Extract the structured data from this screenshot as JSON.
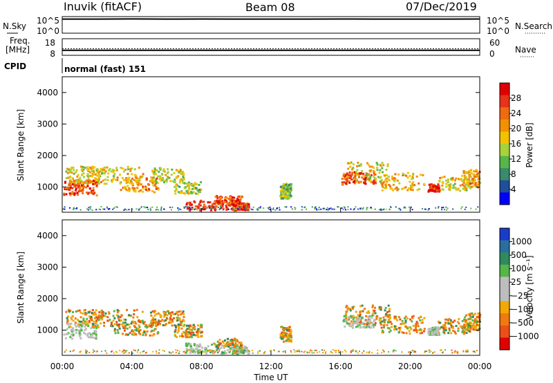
{
  "header": {
    "station": "Inuvik (fitACF)",
    "beam": "Beam 08",
    "date": "07/Dec/2019"
  },
  "status_panels": {
    "nsky_label": "N.Sky",
    "nsky_ticks": [
      "10^5",
      "10^0"
    ],
    "nsearch_label": "N.Search",
    "nsearch_ticks": [
      "10^5",
      "10^0"
    ],
    "freq_label": [
      "Freq.",
      "[MHz]"
    ],
    "freq_ticks": [
      "18",
      "8"
    ],
    "nave_label": "Nave",
    "nave_ticks": [
      "60",
      "0"
    ],
    "cpid_label": "CPID",
    "cpid_value": "normal (fast) 151"
  },
  "colors": {
    "power_scale": [
      "#0000ff",
      "#1f4e9b",
      "#3a8a6e",
      "#56b64a",
      "#a8d23a",
      "#f2c200",
      "#f29100",
      "#f06a10",
      "#e8321a",
      "#e00000"
    ],
    "velocity_scale": [
      "#1a3cc8",
      "#2a6ea0",
      "#2f8a5e",
      "#56b64a",
      "#bdbdbd",
      "#bdbdbd",
      "#f2a800",
      "#f07a10",
      "#ec5018",
      "#e00000"
    ]
  },
  "chart_data": [
    {
      "type": "line",
      "name": "nsky-nsearch",
      "ylabel": "N.Sky",
      "y2label": "N.Search",
      "yscale": "log",
      "ylim": [
        1,
        100000
      ],
      "x_range": [
        "00:00",
        "00:00"
      ],
      "series": [
        {
          "values_log10": [
            4.25,
            4.25,
            4.3,
            4.25,
            4.28,
            4.25,
            4.26,
            4.25,
            4.27,
            4.25,
            4.26,
            4.25,
            4.28
          ]
        }
      ]
    },
    {
      "type": "line",
      "name": "freq-nave",
      "ylabel": "Freq. [MHz]",
      "ylim": [
        8,
        18
      ],
      "y2label": "Nave",
      "y2lim": [
        0,
        60
      ],
      "series": [
        {
          "values": [
            11.0,
            11.0,
            11.0,
            11.0,
            11.0,
            11.0,
            11.0,
            11.0,
            11.0,
            11.0,
            11.0,
            11.0,
            11.0
          ]
        },
        {
          "values": [
            12.0,
            12.0,
            12.0,
            12.0,
            12.0,
            12.0,
            12.0,
            12.0,
            12.0,
            12.0,
            12.0,
            12.0,
            12.0
          ]
        }
      ]
    },
    {
      "type": "heatmap",
      "name": "power",
      "ylabel": "Slant Range [km]",
      "yticks": [
        1000,
        2000,
        3000,
        4000
      ],
      "ylim": [
        200,
        4500
      ],
      "colorbar_label": "Power [dB]",
      "colorbar_ticks": [
        "28",
        "24",
        "20",
        "16",
        "12",
        "8",
        "4"
      ],
      "colorbar_range": [
        0,
        30
      ]
    },
    {
      "type": "heatmap",
      "name": "velocity",
      "ylabel": "Slant Range [km]",
      "yticks": [
        1000,
        2000,
        3000,
        4000
      ],
      "ylim": [
        200,
        4500
      ],
      "colorbar_label": "Velocity [m s⁻¹]",
      "colorbar_ticks": [
        "1000",
        "500",
        "100",
        "25",
        "−25",
        "−100",
        "−500",
        "−1000"
      ],
      "xlabel": "Time UT",
      "xticks": [
        "00:00",
        "04:00",
        "08:00",
        "12:00",
        "16:00",
        "20:00",
        "00:00"
      ]
    }
  ]
}
